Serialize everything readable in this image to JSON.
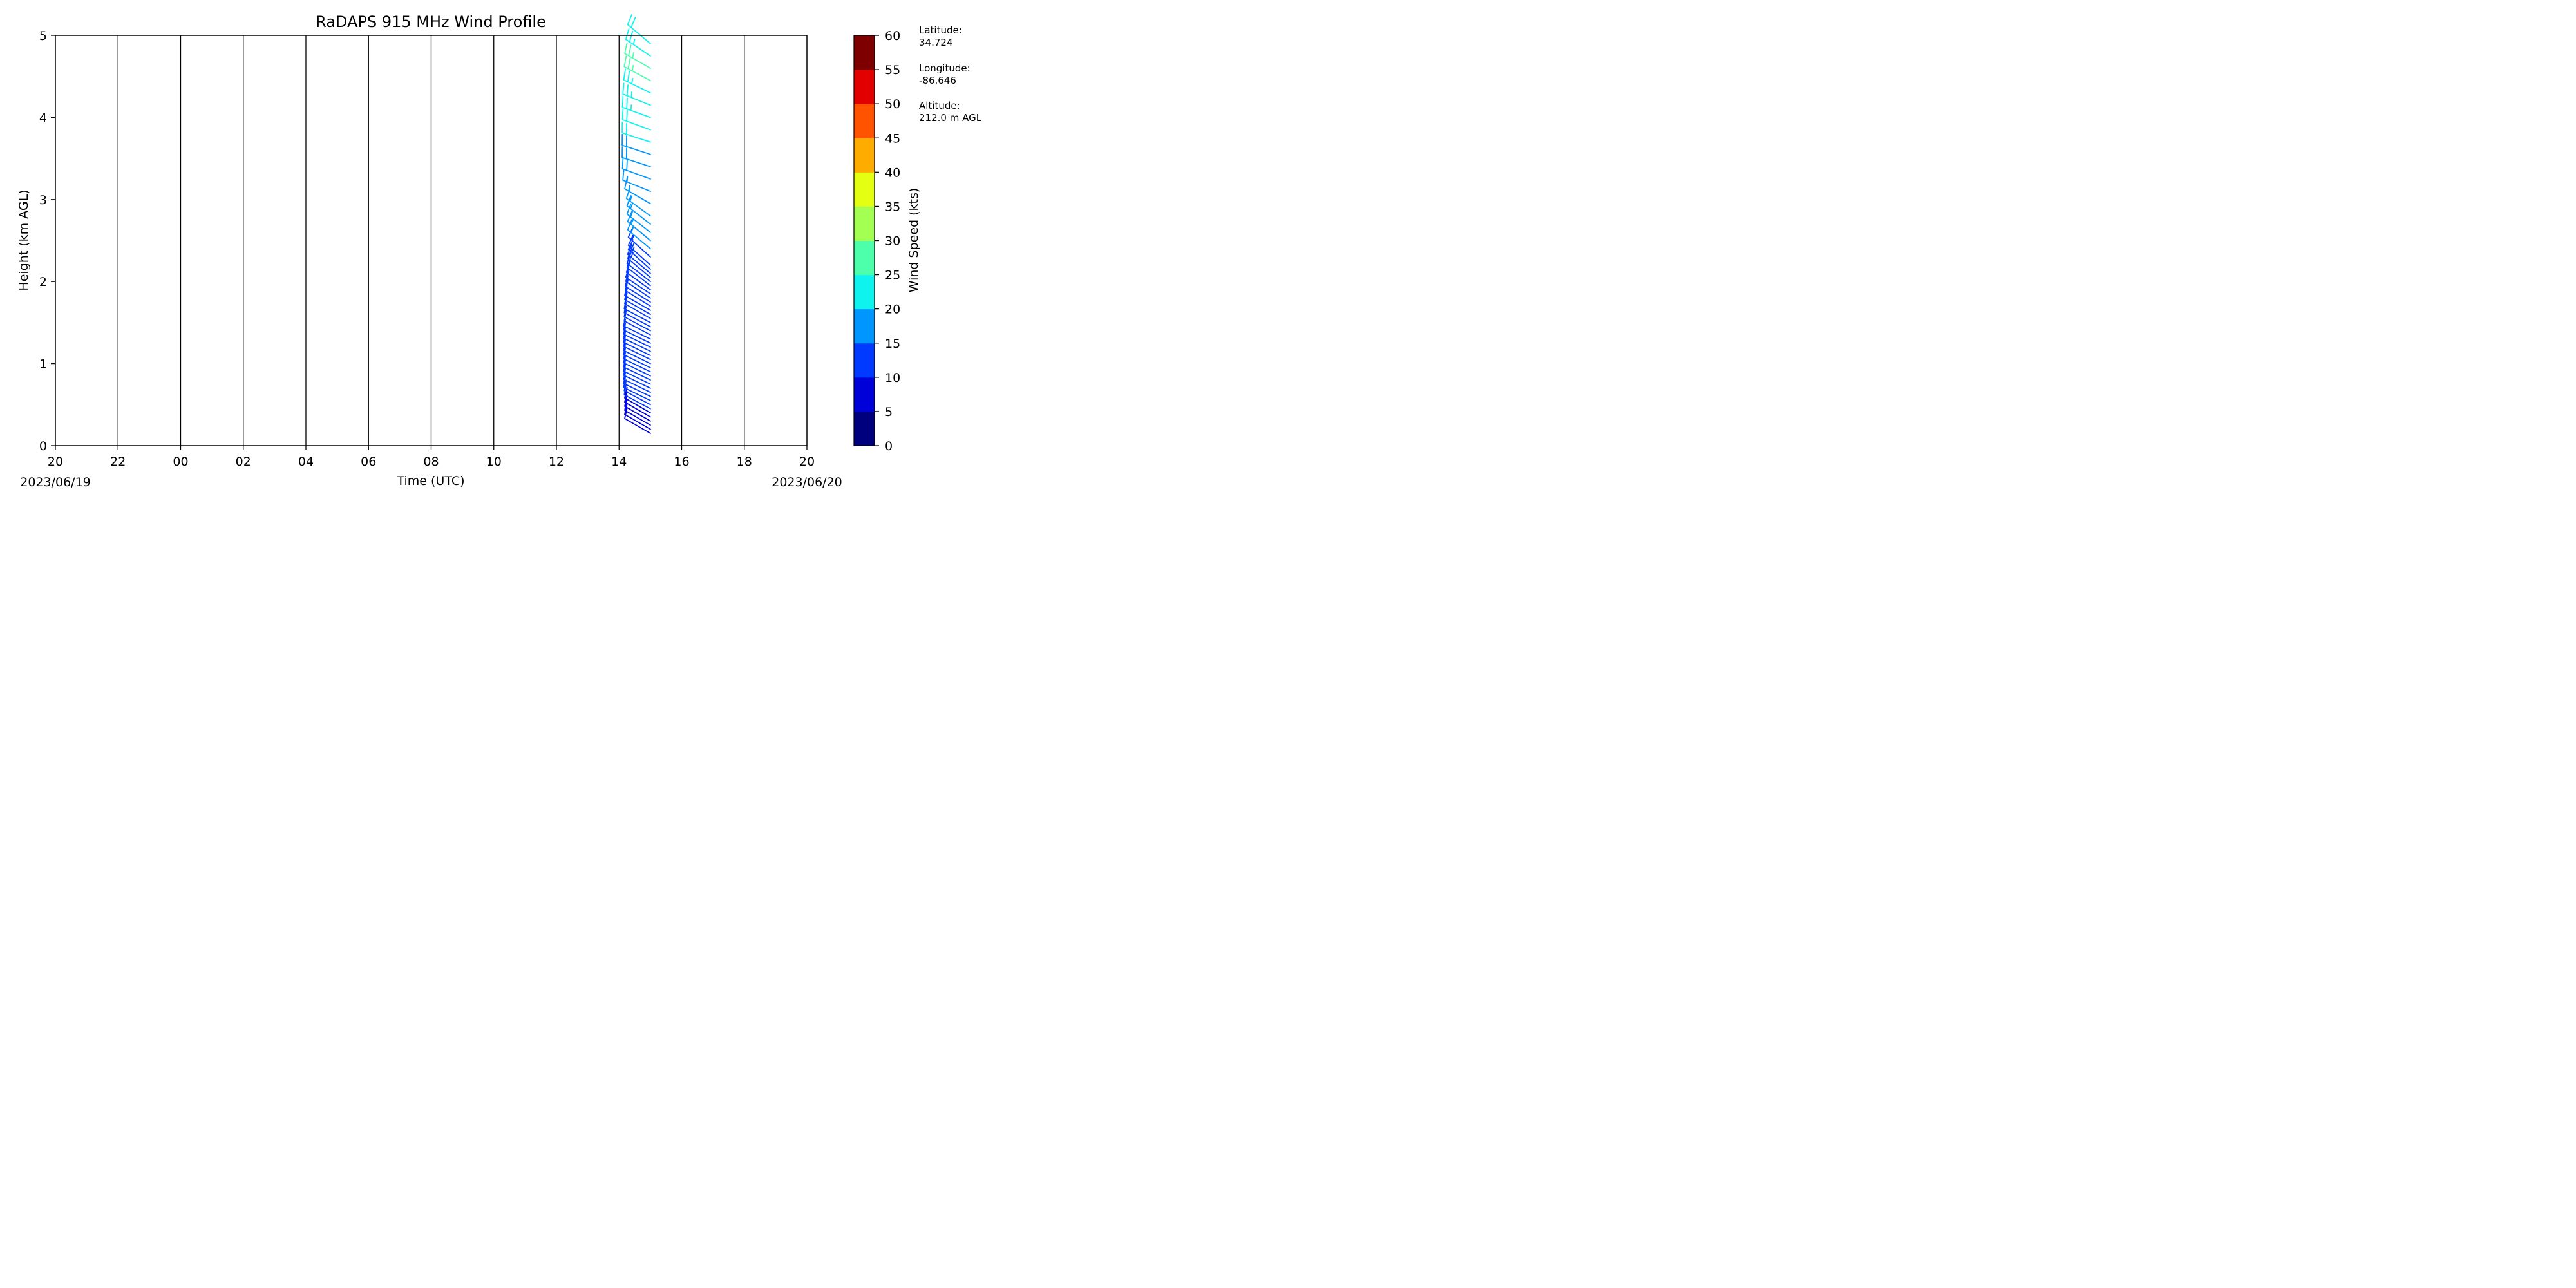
{
  "chart_data": {
    "type": "wind_barbs",
    "title": "RaDAPS 915 MHz Wind Profile",
    "xlabel": "Time (UTC)",
    "ylabel": "Height (km AGL)",
    "x_ticks": [
      "20",
      "22",
      "00",
      "02",
      "04",
      "06",
      "08",
      "10",
      "12",
      "14",
      "16",
      "18",
      "20"
    ],
    "x_range_hours": [
      0,
      24
    ],
    "date_start": "2023/06/19",
    "date_end": "2023/06/20",
    "y_ticks": [
      "0",
      "1",
      "2",
      "3",
      "4",
      "5"
    ],
    "ylim": [
      0,
      5
    ],
    "grid": "vertical lines at each x tick",
    "colorbar": {
      "label": "Wind Speed (kts)",
      "ticks": [
        "0",
        "5",
        "10",
        "15",
        "20",
        "25",
        "30",
        "35",
        "40",
        "45",
        "50",
        "55",
        "60"
      ],
      "range": [
        0,
        60
      ],
      "colors": [
        "#00007f",
        "#0000d9",
        "#0039ff",
        "#0096ff",
        "#0ff3ee",
        "#4dffaa",
        "#a4ff53",
        "#e4ff12",
        "#ffac00",
        "#ff5300",
        "#e30000",
        "#7f0000"
      ]
    },
    "site_info": {
      "latitude_label": "Latitude:",
      "latitude": "34.724",
      "longitude_label": "Longitude:",
      "longitude": "-86.646",
      "altitude_label": "Altitude:",
      "altitude": "212.0 m AGL"
    },
    "series": [
      {
        "data_columns": [
          "time_utc_hhmm",
          "height_km",
          "speed_kts",
          "direction_deg"
        ],
        "points": [
          [
            "15:00",
            0.15,
            9,
            300
          ],
          [
            "15:00",
            0.2,
            9,
            300
          ],
          [
            "15:00",
            0.25,
            9,
            300
          ],
          [
            "15:00",
            0.3,
            9,
            300
          ],
          [
            "15:00",
            0.35,
            9,
            300
          ],
          [
            "15:00",
            0.4,
            9,
            300
          ],
          [
            "15:00",
            0.45,
            10,
            298
          ],
          [
            "15:00",
            0.5,
            10,
            298
          ],
          [
            "15:00",
            0.55,
            10,
            296
          ],
          [
            "15:00",
            0.6,
            10,
            296
          ],
          [
            "15:00",
            0.65,
            10,
            296
          ],
          [
            "15:00",
            0.7,
            10,
            296
          ],
          [
            "15:00",
            0.75,
            10,
            296
          ],
          [
            "15:00",
            0.8,
            10,
            296
          ],
          [
            "15:00",
            0.85,
            10,
            296
          ],
          [
            "15:00",
            0.9,
            10,
            296
          ],
          [
            "15:00",
            0.95,
            10,
            296
          ],
          [
            "15:00",
            1.0,
            10,
            296
          ],
          [
            "15:00",
            1.05,
            10,
            296
          ],
          [
            "15:00",
            1.1,
            10,
            296
          ],
          [
            "15:00",
            1.15,
            10,
            296
          ],
          [
            "15:00",
            1.2,
            10,
            296
          ],
          [
            "15:00",
            1.25,
            10,
            296
          ],
          [
            "15:00",
            1.3,
            10,
            296
          ],
          [
            "15:00",
            1.35,
            10,
            298
          ],
          [
            "15:00",
            1.4,
            11,
            298
          ],
          [
            "15:00",
            1.45,
            11,
            298
          ],
          [
            "15:00",
            1.5,
            11,
            298
          ],
          [
            "15:00",
            1.55,
            11,
            300
          ],
          [
            "15:00",
            1.6,
            11,
            300
          ],
          [
            "15:00",
            1.65,
            11,
            300
          ],
          [
            "15:00",
            1.7,
            12,
            302
          ],
          [
            "15:00",
            1.75,
            12,
            302
          ],
          [
            "15:00",
            1.8,
            12,
            304
          ],
          [
            "15:00",
            1.85,
            12,
            304
          ],
          [
            "15:00",
            1.9,
            12,
            306
          ],
          [
            "15:00",
            1.95,
            12,
            308
          ],
          [
            "15:00",
            2.0,
            12,
            308
          ],
          [
            "15:00",
            2.05,
            12,
            310
          ],
          [
            "15:00",
            2.1,
            13,
            310
          ],
          [
            "15:00",
            2.15,
            13,
            312
          ],
          [
            "15:00",
            2.2,
            13,
            312
          ],
          [
            "15:00",
            2.3,
            14,
            312
          ],
          [
            "15:00",
            2.4,
            16,
            310
          ],
          [
            "15:00",
            2.5,
            16,
            310
          ],
          [
            "15:00",
            2.6,
            17,
            308
          ],
          [
            "15:00",
            2.7,
            17,
            308
          ],
          [
            "15:00",
            2.8,
            17,
            306
          ],
          [
            "15:00",
            2.95,
            17,
            300
          ],
          [
            "15:00",
            3.1,
            17,
            292
          ],
          [
            "15:00",
            3.25,
            18,
            290
          ],
          [
            "15:00",
            3.4,
            18,
            288
          ],
          [
            "15:00",
            3.55,
            19,
            288
          ],
          [
            "15:00",
            3.7,
            21,
            288
          ],
          [
            "15:00",
            3.85,
            22,
            290
          ],
          [
            "15:00",
            4.0,
            23,
            290
          ],
          [
            "15:00",
            4.15,
            24,
            292
          ],
          [
            "15:00",
            4.3,
            24,
            296
          ],
          [
            "15:00",
            4.45,
            26,
            298
          ],
          [
            "15:00",
            4.6,
            27,
            300
          ],
          [
            "15:00",
            4.75,
            24,
            304
          ],
          [
            "15:00",
            4.9,
            22,
            310
          ]
        ]
      }
    ]
  }
}
